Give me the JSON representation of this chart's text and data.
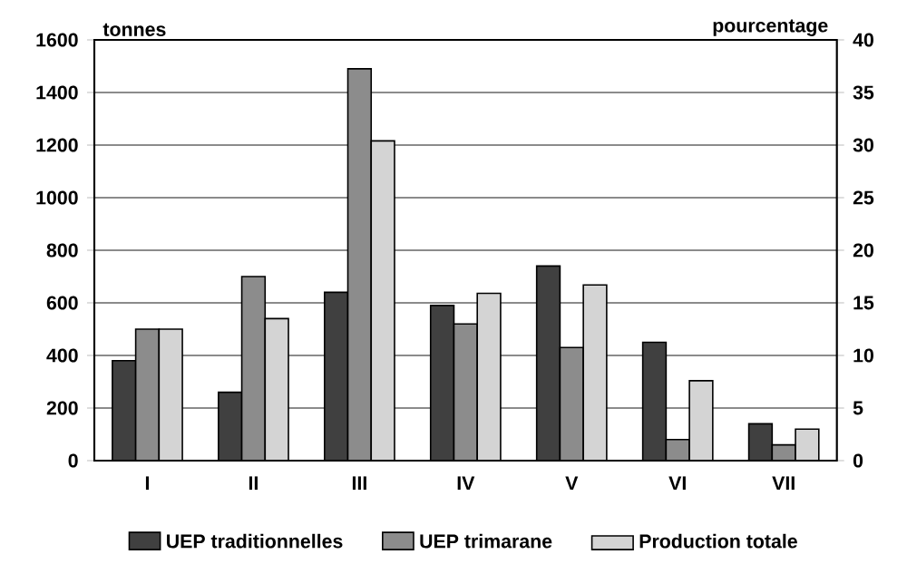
{
  "chart_data": {
    "type": "bar",
    "ylabel": "tonnes",
    "y2label": "pourcentage",
    "categories": [
      "I",
      "II",
      "III",
      "IV",
      "V",
      "VI",
      "VII"
    ],
    "series": [
      {
        "name": "UEP traditionnelles",
        "color": "#404040",
        "values": [
          380,
          260,
          640,
          590,
          740,
          450,
          140
        ]
      },
      {
        "name": "UEP trimarane",
        "color": "#8c8c8c",
        "values": [
          500,
          700,
          1490,
          520,
          430,
          80,
          60
        ]
      },
      {
        "name": "Production totale",
        "color": "#d4d4d4",
        "axis": "y2",
        "values": [
          12.5,
          13.5,
          30.4,
          15.9,
          16.7,
          7.6,
          3.0
        ]
      }
    ],
    "ylim": [
      0,
      1600
    ],
    "yticks": [
      0,
      200,
      400,
      600,
      800,
      1000,
      1200,
      1400,
      1600
    ],
    "y2lim": [
      0,
      40
    ],
    "y2ticks": [
      0,
      5,
      10,
      15,
      20,
      25,
      30,
      35,
      40
    ],
    "grid": "y",
    "legend": "bottom"
  }
}
